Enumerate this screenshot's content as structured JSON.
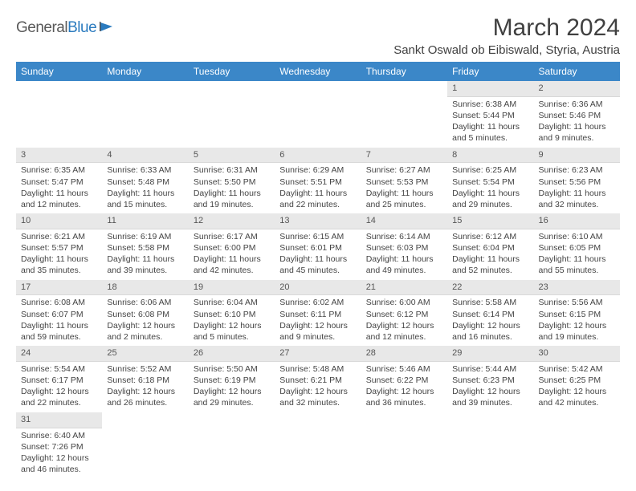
{
  "logo": {
    "text1": "General",
    "text2": "Blue"
  },
  "title": "March 2024",
  "location": "Sankt Oswald ob Eibiswald, Styria, Austria",
  "colors": {
    "header_bg": "#3b87c8",
    "header_fg": "#ffffff",
    "daynum_bg": "#e8e8e8",
    "text": "#444444",
    "logo_gray": "#5a5a5a",
    "logo_blue": "#2b7bbf"
  },
  "weekdays": [
    "Sunday",
    "Monday",
    "Tuesday",
    "Wednesday",
    "Thursday",
    "Friday",
    "Saturday"
  ],
  "weeks": [
    [
      {
        "n": "",
        "l1": "",
        "l2": "",
        "l3": "",
        "l4": ""
      },
      {
        "n": "",
        "l1": "",
        "l2": "",
        "l3": "",
        "l4": ""
      },
      {
        "n": "",
        "l1": "",
        "l2": "",
        "l3": "",
        "l4": ""
      },
      {
        "n": "",
        "l1": "",
        "l2": "",
        "l3": "",
        "l4": ""
      },
      {
        "n": "",
        "l1": "",
        "l2": "",
        "l3": "",
        "l4": ""
      },
      {
        "n": "1",
        "l1": "Sunrise: 6:38 AM",
        "l2": "Sunset: 5:44 PM",
        "l3": "Daylight: 11 hours",
        "l4": "and 5 minutes."
      },
      {
        "n": "2",
        "l1": "Sunrise: 6:36 AM",
        "l2": "Sunset: 5:46 PM",
        "l3": "Daylight: 11 hours",
        "l4": "and 9 minutes."
      }
    ],
    [
      {
        "n": "3",
        "l1": "Sunrise: 6:35 AM",
        "l2": "Sunset: 5:47 PM",
        "l3": "Daylight: 11 hours",
        "l4": "and 12 minutes."
      },
      {
        "n": "4",
        "l1": "Sunrise: 6:33 AM",
        "l2": "Sunset: 5:48 PM",
        "l3": "Daylight: 11 hours",
        "l4": "and 15 minutes."
      },
      {
        "n": "5",
        "l1": "Sunrise: 6:31 AM",
        "l2": "Sunset: 5:50 PM",
        "l3": "Daylight: 11 hours",
        "l4": "and 19 minutes."
      },
      {
        "n": "6",
        "l1": "Sunrise: 6:29 AM",
        "l2": "Sunset: 5:51 PM",
        "l3": "Daylight: 11 hours",
        "l4": "and 22 minutes."
      },
      {
        "n": "7",
        "l1": "Sunrise: 6:27 AM",
        "l2": "Sunset: 5:53 PM",
        "l3": "Daylight: 11 hours",
        "l4": "and 25 minutes."
      },
      {
        "n": "8",
        "l1": "Sunrise: 6:25 AM",
        "l2": "Sunset: 5:54 PM",
        "l3": "Daylight: 11 hours",
        "l4": "and 29 minutes."
      },
      {
        "n": "9",
        "l1": "Sunrise: 6:23 AM",
        "l2": "Sunset: 5:56 PM",
        "l3": "Daylight: 11 hours",
        "l4": "and 32 minutes."
      }
    ],
    [
      {
        "n": "10",
        "l1": "Sunrise: 6:21 AM",
        "l2": "Sunset: 5:57 PM",
        "l3": "Daylight: 11 hours",
        "l4": "and 35 minutes."
      },
      {
        "n": "11",
        "l1": "Sunrise: 6:19 AM",
        "l2": "Sunset: 5:58 PM",
        "l3": "Daylight: 11 hours",
        "l4": "and 39 minutes."
      },
      {
        "n": "12",
        "l1": "Sunrise: 6:17 AM",
        "l2": "Sunset: 6:00 PM",
        "l3": "Daylight: 11 hours",
        "l4": "and 42 minutes."
      },
      {
        "n": "13",
        "l1": "Sunrise: 6:15 AM",
        "l2": "Sunset: 6:01 PM",
        "l3": "Daylight: 11 hours",
        "l4": "and 45 minutes."
      },
      {
        "n": "14",
        "l1": "Sunrise: 6:14 AM",
        "l2": "Sunset: 6:03 PM",
        "l3": "Daylight: 11 hours",
        "l4": "and 49 minutes."
      },
      {
        "n": "15",
        "l1": "Sunrise: 6:12 AM",
        "l2": "Sunset: 6:04 PM",
        "l3": "Daylight: 11 hours",
        "l4": "and 52 minutes."
      },
      {
        "n": "16",
        "l1": "Sunrise: 6:10 AM",
        "l2": "Sunset: 6:05 PM",
        "l3": "Daylight: 11 hours",
        "l4": "and 55 minutes."
      }
    ],
    [
      {
        "n": "17",
        "l1": "Sunrise: 6:08 AM",
        "l2": "Sunset: 6:07 PM",
        "l3": "Daylight: 11 hours",
        "l4": "and 59 minutes."
      },
      {
        "n": "18",
        "l1": "Sunrise: 6:06 AM",
        "l2": "Sunset: 6:08 PM",
        "l3": "Daylight: 12 hours",
        "l4": "and 2 minutes."
      },
      {
        "n": "19",
        "l1": "Sunrise: 6:04 AM",
        "l2": "Sunset: 6:10 PM",
        "l3": "Daylight: 12 hours",
        "l4": "and 5 minutes."
      },
      {
        "n": "20",
        "l1": "Sunrise: 6:02 AM",
        "l2": "Sunset: 6:11 PM",
        "l3": "Daylight: 12 hours",
        "l4": "and 9 minutes."
      },
      {
        "n": "21",
        "l1": "Sunrise: 6:00 AM",
        "l2": "Sunset: 6:12 PM",
        "l3": "Daylight: 12 hours",
        "l4": "and 12 minutes."
      },
      {
        "n": "22",
        "l1": "Sunrise: 5:58 AM",
        "l2": "Sunset: 6:14 PM",
        "l3": "Daylight: 12 hours",
        "l4": "and 16 minutes."
      },
      {
        "n": "23",
        "l1": "Sunrise: 5:56 AM",
        "l2": "Sunset: 6:15 PM",
        "l3": "Daylight: 12 hours",
        "l4": "and 19 minutes."
      }
    ],
    [
      {
        "n": "24",
        "l1": "Sunrise: 5:54 AM",
        "l2": "Sunset: 6:17 PM",
        "l3": "Daylight: 12 hours",
        "l4": "and 22 minutes."
      },
      {
        "n": "25",
        "l1": "Sunrise: 5:52 AM",
        "l2": "Sunset: 6:18 PM",
        "l3": "Daylight: 12 hours",
        "l4": "and 26 minutes."
      },
      {
        "n": "26",
        "l1": "Sunrise: 5:50 AM",
        "l2": "Sunset: 6:19 PM",
        "l3": "Daylight: 12 hours",
        "l4": "and 29 minutes."
      },
      {
        "n": "27",
        "l1": "Sunrise: 5:48 AM",
        "l2": "Sunset: 6:21 PM",
        "l3": "Daylight: 12 hours",
        "l4": "and 32 minutes."
      },
      {
        "n": "28",
        "l1": "Sunrise: 5:46 AM",
        "l2": "Sunset: 6:22 PM",
        "l3": "Daylight: 12 hours",
        "l4": "and 36 minutes."
      },
      {
        "n": "29",
        "l1": "Sunrise: 5:44 AM",
        "l2": "Sunset: 6:23 PM",
        "l3": "Daylight: 12 hours",
        "l4": "and 39 minutes."
      },
      {
        "n": "30",
        "l1": "Sunrise: 5:42 AM",
        "l2": "Sunset: 6:25 PM",
        "l3": "Daylight: 12 hours",
        "l4": "and 42 minutes."
      }
    ],
    [
      {
        "n": "31",
        "l1": "Sunrise: 6:40 AM",
        "l2": "Sunset: 7:26 PM",
        "l3": "Daylight: 12 hours",
        "l4": "and 46 minutes."
      },
      {
        "n": "",
        "l1": "",
        "l2": "",
        "l3": "",
        "l4": ""
      },
      {
        "n": "",
        "l1": "",
        "l2": "",
        "l3": "",
        "l4": ""
      },
      {
        "n": "",
        "l1": "",
        "l2": "",
        "l3": "",
        "l4": ""
      },
      {
        "n": "",
        "l1": "",
        "l2": "",
        "l3": "",
        "l4": ""
      },
      {
        "n": "",
        "l1": "",
        "l2": "",
        "l3": "",
        "l4": ""
      },
      {
        "n": "",
        "l1": "",
        "l2": "",
        "l3": "",
        "l4": ""
      }
    ]
  ]
}
